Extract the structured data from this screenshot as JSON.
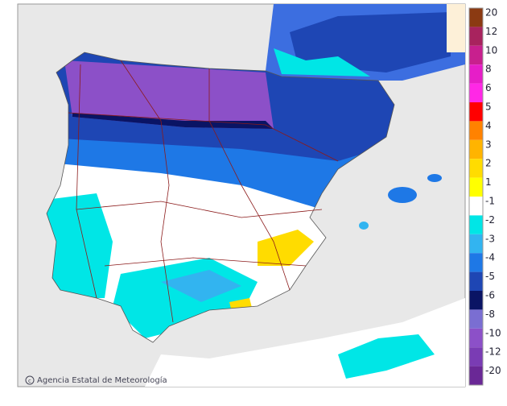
{
  "credit": "Agencia Estatal de Meteorología",
  "legend": {
    "items": [
      {
        "label": 20,
        "color": "#8b3a12"
      },
      {
        "label": 12,
        "color": "#a8235e"
      },
      {
        "label": 10,
        "color": "#c8208e"
      },
      {
        "label": 8,
        "color": "#e61ec8"
      },
      {
        "label": 6,
        "color": "#ff28e6"
      },
      {
        "label": 5,
        "color": "#ff0000"
      },
      {
        "label": 4,
        "color": "#ff8200"
      },
      {
        "label": 3,
        "color": "#ffb400"
      },
      {
        "label": 2,
        "color": "#ffdc00"
      },
      {
        "label": 1,
        "color": "#ffff00"
      },
      {
        "label": -1,
        "color": "#ffffff"
      },
      {
        "label": -2,
        "color": "#00e6e6"
      },
      {
        "label": -3,
        "color": "#32b4f0"
      },
      {
        "label": -4,
        "color": "#1e78e6"
      },
      {
        "label": -5,
        "color": "#1e46b4"
      },
      {
        "label": -6,
        "color": "#0a1464"
      },
      {
        "label": -8,
        "color": "#7a6ed2"
      },
      {
        "label": -10,
        "color": "#8c50c8"
      },
      {
        "label": -12,
        "color": "#7a3cb4"
      },
      {
        "label": -20,
        "color": "#6a2896"
      }
    ]
  }
}
